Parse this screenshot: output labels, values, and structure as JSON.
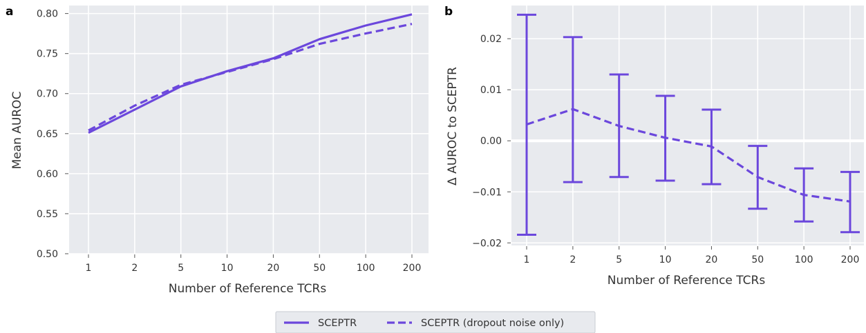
{
  "panels": [
    {
      "letter": "a"
    },
    {
      "letter": "b"
    }
  ],
  "legend": {
    "items": [
      {
        "label": "SCEPTR",
        "style": "solid"
      },
      {
        "label": "SCEPTR (dropout noise only)",
        "style": "dashed"
      }
    ]
  },
  "colors": {
    "line": "#6b47dc",
    "panel_bg": "#e8eaee",
    "grid": "#ffffff"
  },
  "chart_data": [
    {
      "type": "line",
      "title": "",
      "xlabel": "Number of Reference TCRs",
      "ylabel": "Mean AUROC",
      "categories": [
        "1",
        "2",
        "5",
        "10",
        "20",
        "50",
        "100",
        "200"
      ],
      "ylim": [
        0.5,
        0.81
      ],
      "yticks": [
        0.5,
        0.55,
        0.6,
        0.65,
        0.7,
        0.75,
        0.8
      ],
      "ytick_labels": [
        "0.50",
        "0.55",
        "0.60",
        "0.65",
        "0.70",
        "0.75",
        "0.80"
      ],
      "grid": true,
      "series": [
        {
          "name": "SCEPTR",
          "style": "solid",
          "values": [
            0.651,
            0.68,
            0.709,
            0.728,
            0.744,
            0.768,
            0.785,
            0.799
          ]
        },
        {
          "name": "SCEPTR (dropout noise only)",
          "style": "dashed",
          "values": [
            0.654,
            0.685,
            0.711,
            0.727,
            0.743,
            0.762,
            0.775,
            0.787
          ]
        }
      ]
    },
    {
      "type": "line",
      "title": "",
      "xlabel": "Number of Reference TCRs",
      "ylabel": "Δ AUROC to SCEPTR",
      "categories": [
        "1",
        "2",
        "5",
        "10",
        "20",
        "50",
        "100",
        "200"
      ],
      "ylim": [
        -0.0205,
        0.0265
      ],
      "yticks": [
        -0.02,
        -0.01,
        0.0,
        0.01,
        0.02
      ],
      "ytick_labels": [
        "−0.02",
        "−0.01",
        "0.00",
        "0.01",
        "0.02"
      ],
      "zero_line": true,
      "grid": true,
      "series": [
        {
          "name": "SCEPTR (dropout noise only)",
          "style": "dashed",
          "values": [
            0.0032,
            0.0062,
            0.0029,
            0.0006,
            -0.0011,
            -0.0071,
            -0.0106,
            -0.0119
          ],
          "error_low": [
            -0.0184,
            -0.0081,
            -0.0071,
            -0.0078,
            -0.0085,
            -0.0133,
            -0.0158,
            -0.0179
          ],
          "error_high": [
            0.0247,
            0.0203,
            0.013,
            0.0088,
            0.0061,
            -0.001,
            -0.0054,
            -0.0061
          ]
        }
      ]
    }
  ]
}
